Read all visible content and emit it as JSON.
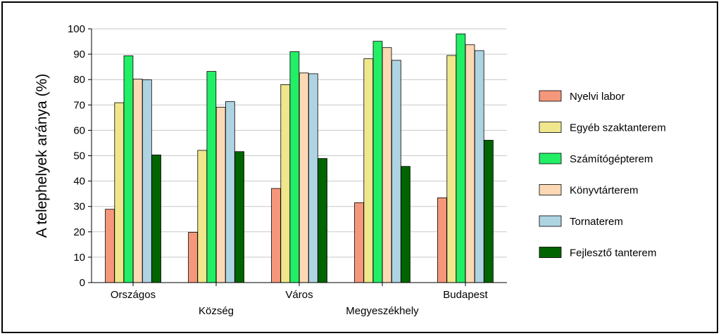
{
  "chart_data": {
    "type": "bar",
    "ylabel": "A telephelyek aránya (%)",
    "xlabel": "",
    "ylim": [
      0,
      100
    ],
    "yticks": [
      "0",
      "10",
      "20",
      "30",
      "40",
      "50",
      "60",
      "70",
      "80",
      "90",
      "100"
    ],
    "categories": [
      "Országos",
      "Község",
      "Város",
      "Megyeszékhely",
      "Budapest"
    ],
    "grid": true,
    "legend_position": "right",
    "series": [
      {
        "name": "Nyelvi labor",
        "color": "#F4977A",
        "values": [
          28.9,
          19.8,
          37.1,
          31.5,
          33.4
        ]
      },
      {
        "name": "Egyéb szaktanterem",
        "color": "#F0E68C",
        "values": [
          70.9,
          52.1,
          78.0,
          88.2,
          89.5
        ]
      },
      {
        "name": "Számítógépterem",
        "color": "#22EE66",
        "values": [
          89.4,
          83.2,
          91.0,
          95.1,
          98.0
        ]
      },
      {
        "name": "Könyvtárterem",
        "color": "#FCD8B4",
        "values": [
          80.2,
          69.1,
          82.6,
          92.6,
          93.7
        ]
      },
      {
        "name": "Tornaterem",
        "color": "#AED4E2",
        "values": [
          79.9,
          71.3,
          82.3,
          87.6,
          91.4
        ]
      },
      {
        "name": "Fejlesztő tanterem",
        "color": "#006400",
        "values": [
          50.3,
          51.6,
          48.9,
          45.8,
          56.1
        ]
      }
    ]
  }
}
